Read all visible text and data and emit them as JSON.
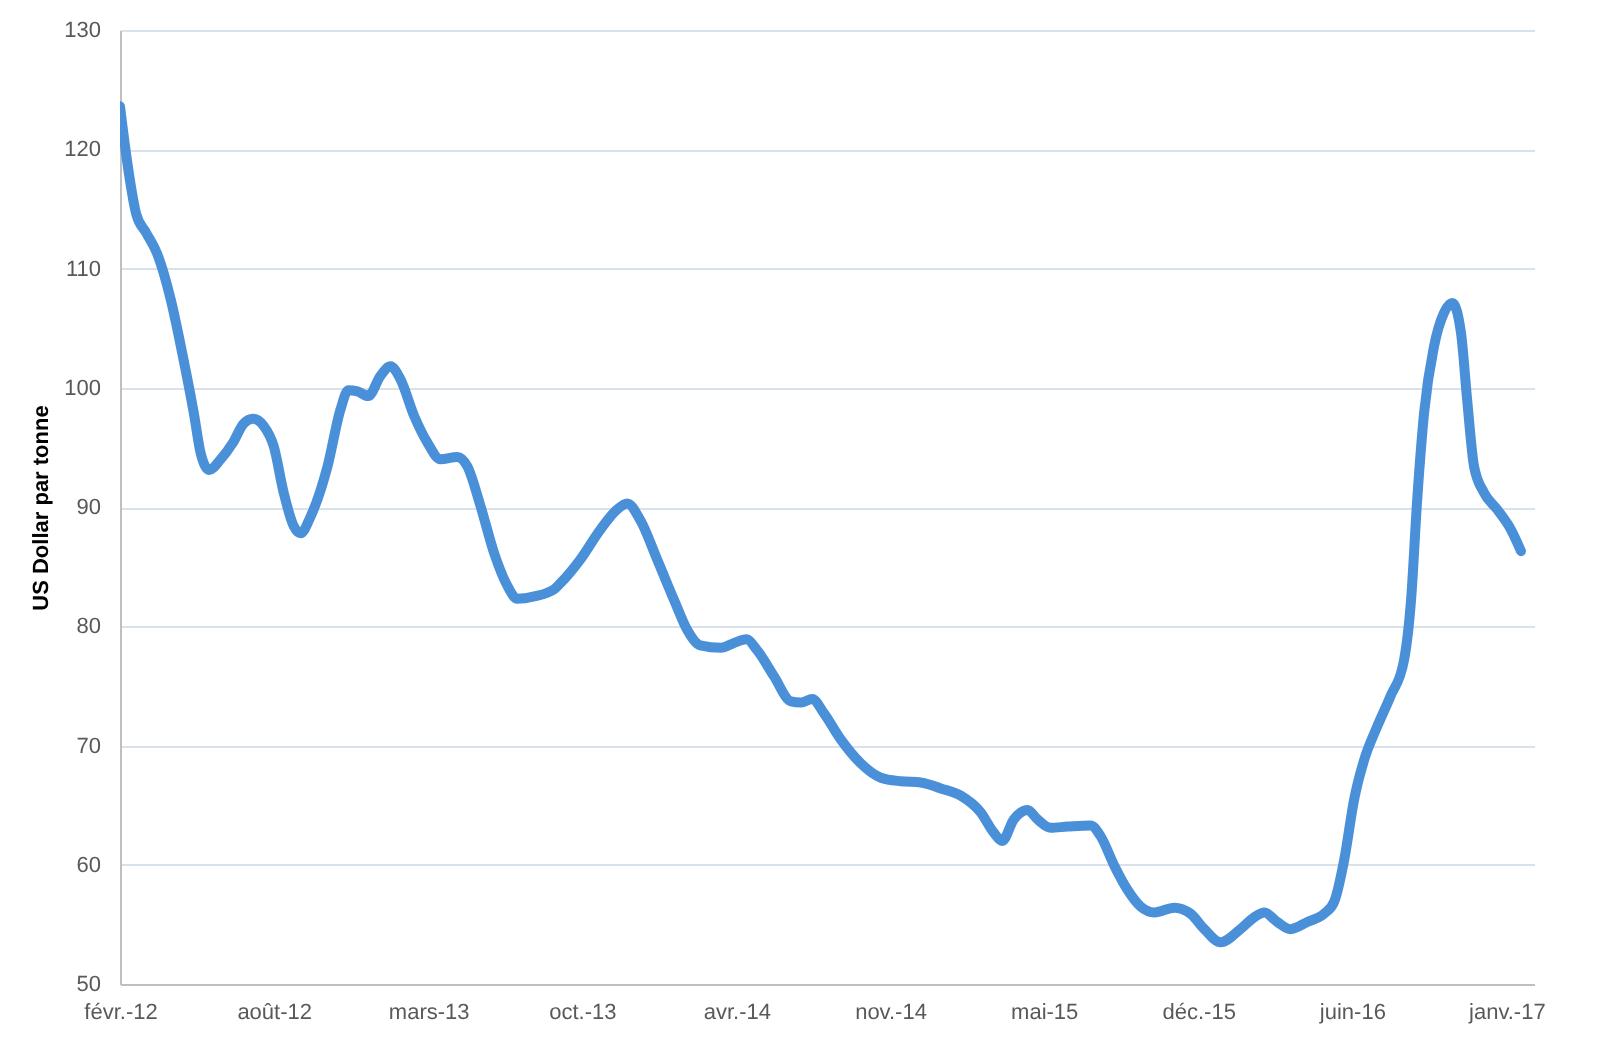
{
  "chart_data": {
    "type": "line",
    "ylabel": "US Dollar par tonne",
    "x": [
      "2012-02-08",
      "2012-02-17",
      "2012-02-29",
      "2012-03-13",
      "2012-03-27",
      "2012-04-14",
      "2012-04-29",
      "2012-05-14",
      "2012-05-23",
      "2012-06-03",
      "2012-06-18",
      "2012-07-04",
      "2012-07-18",
      "2012-07-30",
      "2012-08-13",
      "2012-08-26",
      "2012-09-08",
      "2012-09-21",
      "2012-09-30",
      "2012-10-13",
      "2012-11-04",
      "2012-11-21",
      "2012-12-01",
      "2012-12-13",
      "2012-12-27",
      "2013-01-12",
      "2013-01-25",
      "2013-02-07",
      "2013-02-25",
      "2013-03-14",
      "2013-03-31",
      "2013-04-22",
      "2013-05-05",
      "2013-05-22",
      "2013-06-09",
      "2013-06-26",
      "2013-07-09",
      "2013-07-31",
      "2013-08-26",
      "2013-09-03",
      "2013-09-29",
      "2013-10-25",
      "2013-11-16",
      "2013-11-29",
      "2013-12-16",
      "2014-01-07",
      "2014-01-29",
      "2014-02-15",
      "2014-03-04",
      "2014-03-31",
      "2014-04-17",
      "2014-05-03",
      "2014-05-17",
      "2014-06-08",
      "2014-06-30",
      "2014-07-13",
      "2014-07-28",
      "2014-08-12",
      "2014-09-03",
      "2014-09-29",
      "2014-10-25",
      "2014-11-20",
      "2014-12-16",
      "2015-01-11",
      "2015-02-06",
      "2015-03-04",
      "2015-03-21",
      "2015-04-01",
      "2015-04-16",
      "2015-05-04",
      "2015-05-17",
      "2015-06-03",
      "2015-06-25",
      "2015-07-25",
      "2015-08-07",
      "2015-08-25",
      "2015-09-11",
      "2015-09-28",
      "2015-10-16",
      "2015-11-11",
      "2015-12-02",
      "2015-12-20",
      "2016-01-10",
      "2016-02-05",
      "2016-02-23",
      "2016-03-07",
      "2016-03-24",
      "2016-04-10",
      "2016-05-02",
      "2016-05-24",
      "2016-06-06",
      "2016-06-19",
      "2016-07-02",
      "2016-07-15",
      "2016-08-01",
      "2016-08-18",
      "2016-09-05",
      "2016-09-14",
      "2016-09-22",
      "2016-10-01",
      "2016-10-14",
      "2016-10-27",
      "2016-11-07",
      "2016-11-18",
      "2016-11-26",
      "2016-12-05",
      "2016-12-18",
      "2017-01-04",
      "2017-01-22",
      "2017-02-04"
    ],
    "series": [
      {
        "color": "#4a90d9",
        "values": [
          123.6,
          119.1,
          114.6,
          113.0,
          111.3,
          107.4,
          102.9,
          97.9,
          94.5,
          93.1,
          94.0,
          95.4,
          97.0,
          97.4,
          96.8,
          95.1,
          91.2,
          88.4,
          87.8,
          89.2,
          93.4,
          98.2,
          99.8,
          99.7,
          99.3,
          101.0,
          101.8,
          100.7,
          97.6,
          95.4,
          94.0,
          94.2,
          93.4,
          90.1,
          86.1,
          83.4,
          82.3,
          82.5,
          83.1,
          83.6,
          85.6,
          88.1,
          89.8,
          90.3,
          88.9,
          85.6,
          82.2,
          79.7,
          78.4,
          78.2,
          78.6,
          78.9,
          78.0,
          75.8,
          73.7,
          73.6,
          73.9,
          72.7,
          70.5,
          68.5,
          67.3,
          67.0,
          66.9,
          66.4,
          65.8,
          64.4,
          62.7,
          62.0,
          63.8,
          64.6,
          63.8,
          63.1,
          63.2,
          63.3,
          62.4,
          59.9,
          57.9,
          56.5,
          56.0,
          56.4,
          55.9,
          54.6,
          53.5,
          54.6,
          55.6,
          56.0,
          55.2,
          54.6,
          55.2,
          55.9,
          56.9,
          60.4,
          65.5,
          68.8,
          71.6,
          74.1,
          77.2,
          82.2,
          90.6,
          97.9,
          103.5,
          106.3,
          107.1,
          104.6,
          99.0,
          93.4,
          91.2,
          89.8,
          88.1,
          86.3
        ]
      }
    ],
    "xlim": [
      "2012-02-08",
      "2017-02-21"
    ],
    "xticks": [
      {
        "value": "2012-02-08",
        "label": "févr.-12"
      },
      {
        "value": "2012-08-26",
        "label": "août-12"
      },
      {
        "value": "2013-03-15",
        "label": "mars-13"
      },
      {
        "value": "2013-10-01",
        "label": "oct.-13"
      },
      {
        "value": "2014-04-20",
        "label": "avr.-14"
      },
      {
        "value": "2014-11-06",
        "label": "nov.-14"
      },
      {
        "value": "2015-05-25",
        "label": "mai-15"
      },
      {
        "value": "2015-12-12",
        "label": "déc.-15"
      },
      {
        "value": "2016-06-29",
        "label": "juin-16"
      },
      {
        "value": "2017-01-16",
        "label": "janv.-17"
      }
    ],
    "ylim": [
      50,
      130
    ],
    "yticks": [
      50,
      60,
      70,
      80,
      90,
      100,
      110,
      120,
      130
    ],
    "grid": "y"
  }
}
